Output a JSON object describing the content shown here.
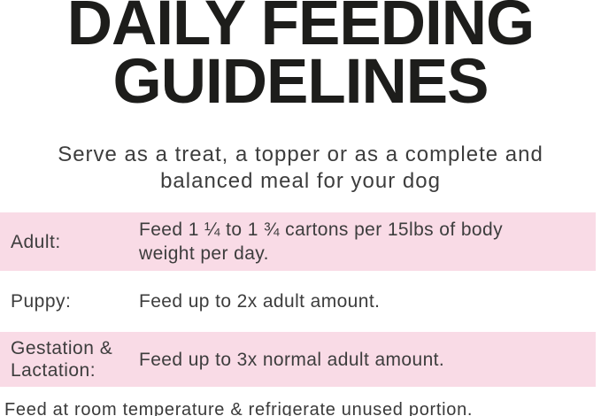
{
  "title": {
    "line1": "DAILY FEEDING",
    "line2": "GUIDELINES"
  },
  "subtitle": "Serve as a treat, a topper or as a complete and balanced meal for your dog",
  "feeding_table": {
    "rows": [
      {
        "label": "Adult:",
        "description": "Feed 1 ¼ to 1 ¾ cartons per 15lbs of body weight per day.",
        "highlighted": true
      },
      {
        "label": "Puppy:",
        "description": "Feed up to 2x adult amount.",
        "highlighted": false
      },
      {
        "label": "Gestation & Lactation:",
        "description": "Feed up to 3x normal adult amount.",
        "highlighted": true
      }
    ]
  },
  "footer": "Feed at room temperature & refrigerate unused portion.",
  "colors": {
    "highlight_pink": "#F9DBE6",
    "title_black": "#1D1D1B",
    "body_gray": "#3D3D3D"
  }
}
